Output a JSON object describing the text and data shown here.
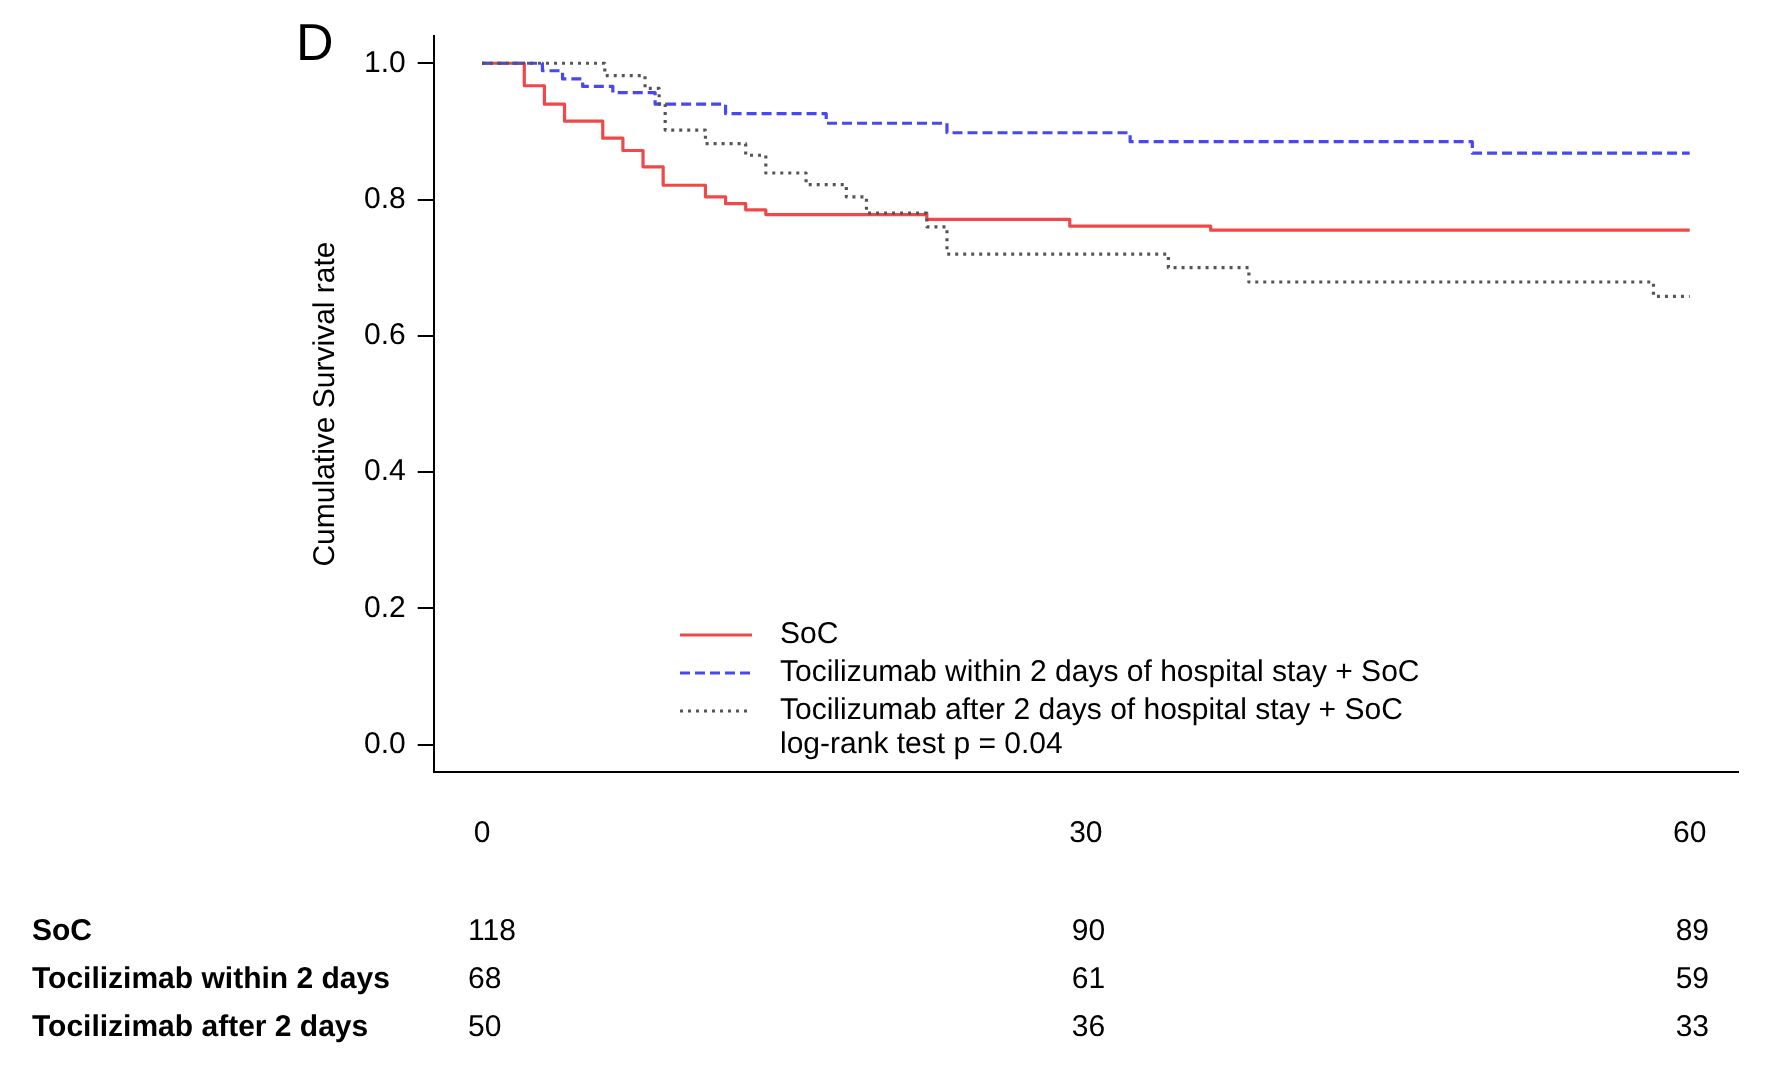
{
  "chart_data": {
    "type": "step",
    "ylabel": "Cumulative Survival rate",
    "xlim": [
      -2.4,
      62.4
    ],
    "xticks": [
      0,
      30,
      60
    ],
    "ylim": [
      -0.04,
      1.04
    ],
    "yticks": [
      {
        "value": 0,
        "label": "0.0"
      },
      {
        "value": 0.2,
        "label": "0.2"
      },
      {
        "value": 0.4,
        "label": "0.4"
      },
      {
        "value": 0.6,
        "label": "0.6"
      },
      {
        "value": 0.8,
        "label": "0.8"
      },
      {
        "value": 1,
        "label": "1.0"
      }
    ],
    "grid": false,
    "legend": "bottom",
    "marker": "none",
    "series": [
      {
        "name": "SoC",
        "color": "#f04848",
        "line_style": "solid",
        "x": [
          0,
          2.1,
          3.1,
          4.1,
          6,
          7,
          8,
          9,
          11.1,
          12.1,
          13.1,
          14.1,
          22.1,
          29.2,
          36.2,
          60
        ],
        "values": [
          1,
          0.967,
          0.94,
          0.915,
          0.89,
          0.872,
          0.848,
          0.821,
          0.804,
          0.794,
          0.785,
          0.778,
          0.771,
          0.761,
          0.755,
          0.755
        ]
      },
      {
        "name": "Tocilizumab within 2 days of hospital stay + SoC",
        "color": "#4848f0",
        "line_style": "dashed",
        "x": [
          0,
          3,
          4,
          5,
          6.5,
          8.6,
          12.1,
          17.1,
          23.1,
          32.2,
          49.2,
          60
        ],
        "values": [
          1,
          0.989,
          0.977,
          0.966,
          0.957,
          0.94,
          0.926,
          0.912,
          0.898,
          0.885,
          0.868,
          0.868
        ]
      },
      {
        "name": "Tocilizumab after 2 days of hospital stay + SoC",
        "color": "#555555",
        "line_style": "dotted",
        "x": [
          0,
          6.1,
          8.1,
          8.8,
          9.1,
          11.1,
          13.1,
          14.1,
          16.1,
          18.1,
          19.1,
          22.1,
          23.1,
          34.1,
          38.1,
          58.2,
          60
        ],
        "values": [
          1,
          0.982,
          0.963,
          0.94,
          0.902,
          0.882,
          0.865,
          0.839,
          0.822,
          0.804,
          0.78,
          0.76,
          0.72,
          0.7,
          0.679,
          0.658,
          0.658
        ]
      }
    ],
    "annotations": [
      "D",
      "log-rank test p = 0.04",
      "SoC",
      "118",
      "90",
      "89",
      "Tocilizimab within 2 days",
      "68",
      "61",
      "59",
      "Tocilizimab after 2 days",
      "50",
      "36",
      "33"
    ]
  }
}
